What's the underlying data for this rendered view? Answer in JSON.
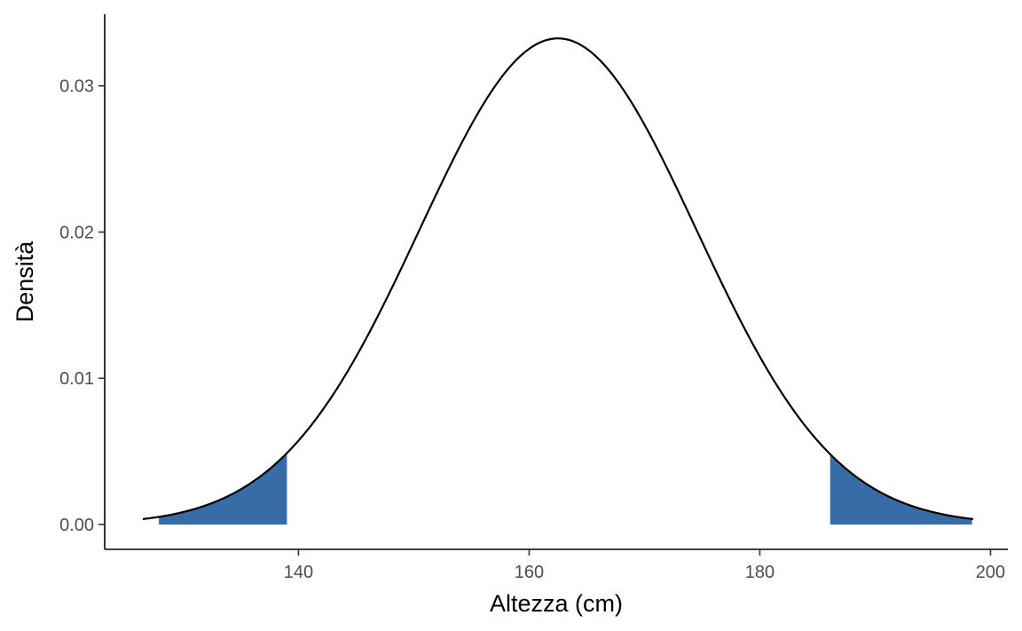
{
  "chart_data": {
    "type": "area",
    "title": "",
    "xlabel": "Altezza (cm)",
    "ylabel": "Densità",
    "xlim": [
      123.2,
      201.5
    ],
    "ylim": [
      -0.0017,
      0.0349
    ],
    "x_ticks": [
      140,
      160,
      180,
      200
    ],
    "y_ticks": [
      0.0,
      0.01,
      0.02,
      0.03
    ],
    "x_tick_labels": [
      "140",
      "160",
      "180",
      "200"
    ],
    "y_tick_labels": [
      "0.00",
      "0.01",
      "0.02",
      "0.03"
    ],
    "grid": false,
    "legend": "none",
    "curve": {
      "distribution": "normal",
      "mean": 162.5,
      "sd": 12,
      "x_range": [
        126.5,
        198.5
      ],
      "color": "#000000"
    },
    "shaded_regions": [
      {
        "x_range": [
          127.9,
          139.0
        ],
        "color": "#386ca6"
      },
      {
        "x_range": [
          186.1,
          198.4
        ],
        "color": "#386ca6"
      }
    ]
  }
}
